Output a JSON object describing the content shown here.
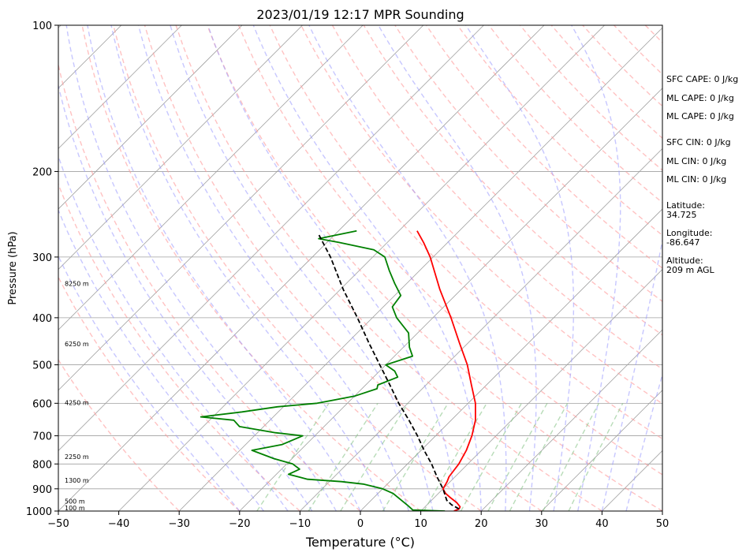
{
  "chart_data": {
    "type": "line",
    "title": "2023/01/19 12:17 MPR Sounding",
    "xlabel": "Temperature (°C)",
    "ylabel": "Pressure (hPa)",
    "xlim": [
      -50,
      50
    ],
    "ylim": [
      1000,
      100
    ],
    "y_scale": "log",
    "grid": true,
    "x_ticks": [
      -50,
      -40,
      -30,
      -20,
      -10,
      0,
      10,
      20,
      30,
      40,
      50
    ],
    "y_ticks": [
      100,
      200,
      300,
      400,
      500,
      600,
      700,
      800,
      900,
      1000
    ],
    "altitude_labels": [
      {
        "text": "100 m",
        "p": 986
      },
      {
        "text": "500 m",
        "p": 955
      },
      {
        "text": "1300 m",
        "p": 864
      },
      {
        "text": "2250 m",
        "p": 772
      },
      {
        "text": "4250 m",
        "p": 598
      },
      {
        "text": "6250 m",
        "p": 453
      },
      {
        "text": "8250 m",
        "p": 340
      }
    ],
    "series": [
      {
        "role": "temperature",
        "color": "#ff0000",
        "points": [
          [
            1000,
            15.5
          ],
          [
            990,
            16.0
          ],
          [
            980,
            15.8
          ],
          [
            960,
            14.5
          ],
          [
            940,
            12.8
          ],
          [
            920,
            11.2
          ],
          [
            900,
            10.0
          ],
          [
            870,
            9.5
          ],
          [
            850,
            9.0
          ],
          [
            800,
            8.5
          ],
          [
            750,
            7.5
          ],
          [
            700,
            6.0
          ],
          [
            650,
            4.0
          ],
          [
            600,
            1.2
          ],
          [
            550,
            -2.5
          ],
          [
            500,
            -6.5
          ],
          [
            450,
            -11.5
          ],
          [
            400,
            -17.0
          ],
          [
            350,
            -23.5
          ],
          [
            300,
            -30.5
          ],
          [
            280,
            -34.0
          ],
          [
            265,
            -37.0
          ]
        ]
      },
      {
        "role": "dewpoint",
        "color": "#008000",
        "points": [
          [
            1000,
            14.0
          ],
          [
            995,
            8.5
          ],
          [
            975,
            7.0
          ],
          [
            950,
            5.0
          ],
          [
            920,
            2.5
          ],
          [
            900,
            0.0
          ],
          [
            880,
            -4.0
          ],
          [
            870,
            -8.0
          ],
          [
            860,
            -14.0
          ],
          [
            840,
            -18.0
          ],
          [
            820,
            -17.0
          ],
          [
            800,
            -19.0
          ],
          [
            780,
            -23.0
          ],
          [
            750,
            -28.0
          ],
          [
            730,
            -24.0
          ],
          [
            700,
            -22.0
          ],
          [
            690,
            -27.0
          ],
          [
            670,
            -34.0
          ],
          [
            650,
            -36.0
          ],
          [
            640,
            -42.0
          ],
          [
            625,
            -36.0
          ],
          [
            610,
            -31.0
          ],
          [
            600,
            -25.0
          ],
          [
            580,
            -20.0
          ],
          [
            560,
            -17.5
          ],
          [
            550,
            -18.0
          ],
          [
            530,
            -16.0
          ],
          [
            515,
            -17.5
          ],
          [
            500,
            -20.0
          ],
          [
            480,
            -17.0
          ],
          [
            460,
            -19.0
          ],
          [
            430,
            -21.5
          ],
          [
            400,
            -26.0
          ],
          [
            380,
            -28.5
          ],
          [
            360,
            -29.0
          ],
          [
            340,
            -32.0
          ],
          [
            320,
            -35.0
          ],
          [
            300,
            -38.0
          ],
          [
            290,
            -41.0
          ],
          [
            280,
            -48.0
          ],
          [
            275,
            -52.0
          ],
          [
            265,
            -47.0
          ]
        ]
      },
      {
        "role": "parcel",
        "color": "#000000",
        "dashed": true,
        "points": [
          [
            990,
            16.0
          ],
          [
            970,
            14.0
          ],
          [
            950,
            12.5
          ],
          [
            900,
            10.0
          ],
          [
            850,
            7.0
          ],
          [
            800,
            4.0
          ],
          [
            750,
            0.5
          ],
          [
            700,
            -3.0
          ],
          [
            650,
            -7.0
          ],
          [
            600,
            -11.5
          ],
          [
            550,
            -16.0
          ],
          [
            500,
            -21.0
          ],
          [
            450,
            -26.5
          ],
          [
            400,
            -32.5
          ],
          [
            350,
            -39.5
          ],
          [
            300,
            -47.0
          ],
          [
            268,
            -53.0
          ]
        ]
      }
    ],
    "reference_lines": {
      "dry_adiabat_color": "#ff9999",
      "moist_adiabat_color": "#9999ff",
      "mixing_ratio_color": "#88c488",
      "isotherm_color": "#a0a0a0"
    }
  },
  "info_panel": {
    "sfc_cape": "SFC CAPE: 0 J/kg",
    "ml_cape_1": "ML CAPE: 0 J/kg",
    "ml_cape_2": "ML CAPE: 0 J/kg",
    "sfc_cin": "SFC CIN: 0 J/kg",
    "ml_cin_1": "ML CIN: 0 J/kg",
    "ml_cin_2": "ML CIN: 0 J/kg",
    "latitude": "Latitude:\n34.725",
    "longitude": "Longitude:\n-86.647",
    "altitude": "Altitude:\n209 m AGL"
  }
}
